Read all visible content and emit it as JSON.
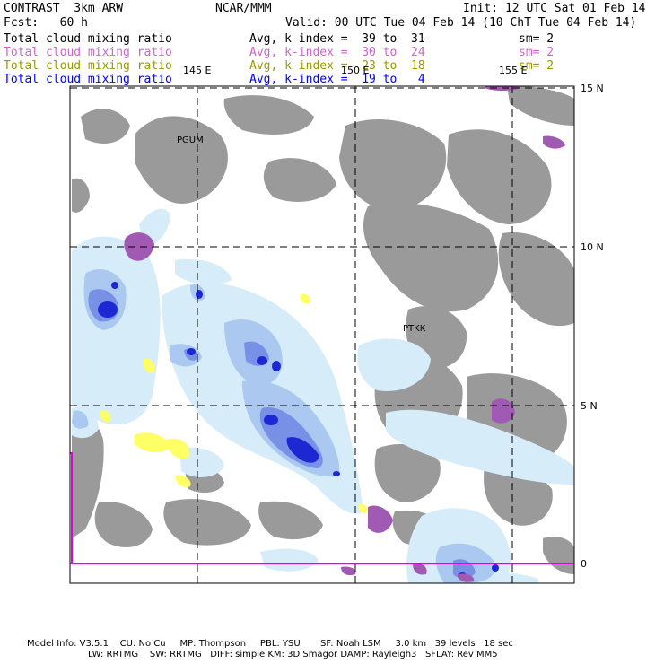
{
  "header": {
    "model": "CONTRAST  3km ARW",
    "org": "NCAR/MMM",
    "init": "Init: 12 UTC Sat 01 Feb 14",
    "fcst": "Fcst:   60 h",
    "valid": "Valid: 00 UTC Tue 04 Feb 14 (10 ChT Tue 04 Feb 14)"
  },
  "legend": [
    {
      "field": "Total cloud mixing ratio",
      "avg": "Avg, k-index =  39 to  31",
      "sm": "sm= 2",
      "color": "#000000"
    },
    {
      "field": "Total cloud mixing ratio",
      "avg": "Avg, k-index =  30 to  24",
      "sm": "sm= 2",
      "color": "#cc66cc"
    },
    {
      "field": "Total cloud mixing ratio",
      "avg": "Avg, k-index =  23 to  18",
      "sm": "sm= 2",
      "color": "#999900"
    },
    {
      "field": "Total cloud mixing ratio",
      "avg": "Avg, k-index =  19 to   4",
      "sm": "",
      "color": "#0000ff"
    }
  ],
  "map": {
    "lon_labels": [
      "145 E",
      "150 E",
      "155 E"
    ],
    "lat_labels": [
      "15 N",
      "10 N",
      "5 N",
      "0"
    ],
    "stations": [
      "PGUM",
      "PTKK"
    ],
    "colors": {
      "grey": "#9a9a9a",
      "magenta": "#a05ab4",
      "yellow": "#ffff66",
      "light_blue": "#d6ecf8",
      "mid_blue": "#aac8f0",
      "blue": "#7890e6",
      "deep_blue": "#1e28d2",
      "equator": "#e000e0"
    }
  },
  "footer": {
    "line1": "Model Info: V3.5.1    CU: No Cu     MP: Thompson     PBL: YSU       SF: Noah LSM     3.0 km   39 levels   18 sec",
    "line2": "LW: RRTMG    SW: RRTMG   DIFF: simple KM: 3D Smagor DAMP: Rayleigh3   SFLAY: Rev MM5"
  }
}
